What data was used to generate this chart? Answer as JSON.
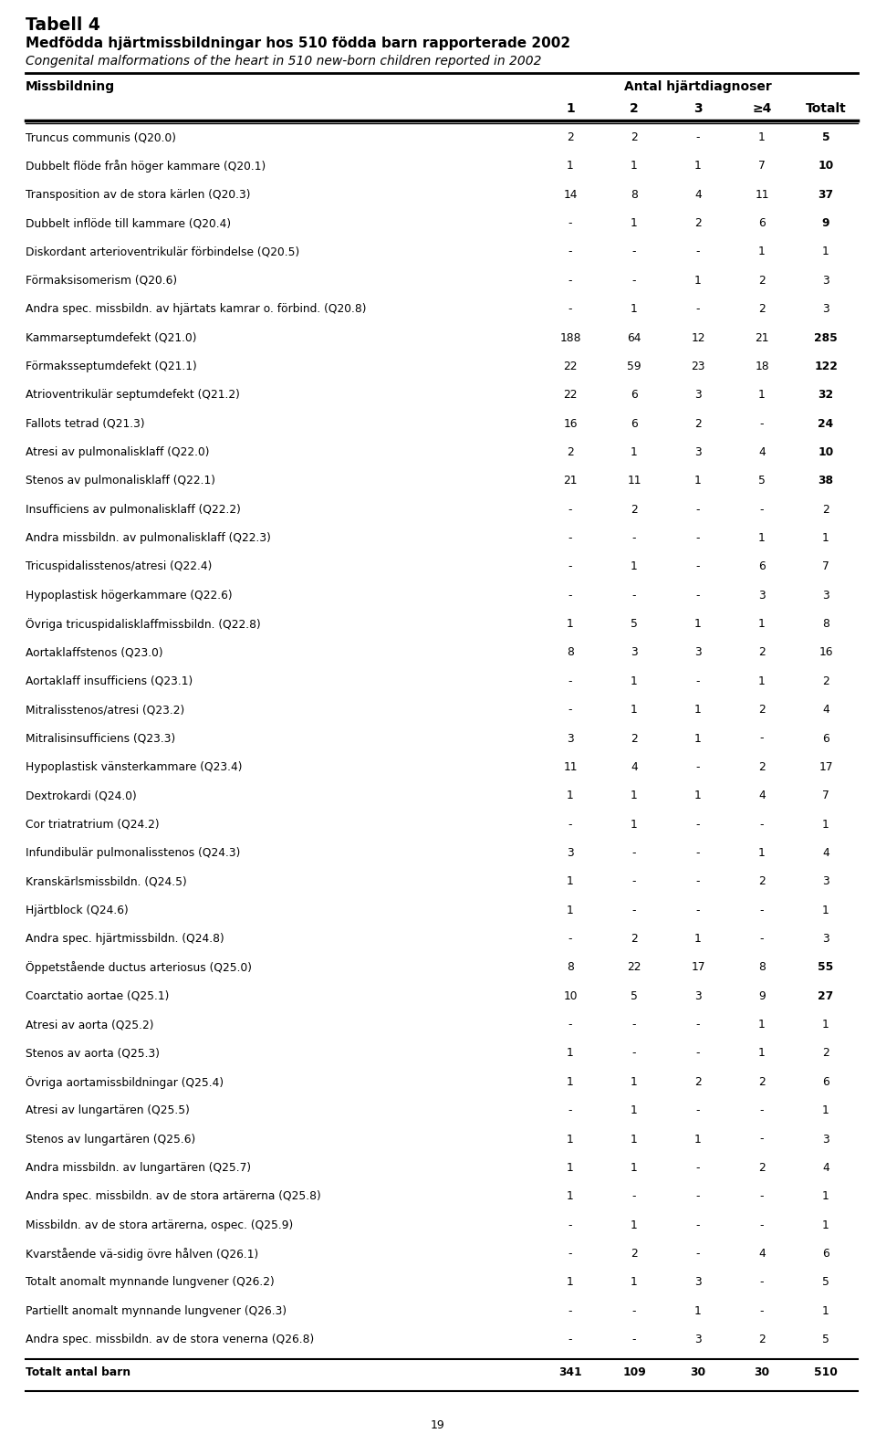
{
  "title1": "Tabell 4",
  "title2": "Medfödda hjärtmissbildningar hos 510 födda barn rapporterade 2002",
  "title3": "Congenital malformations of the heart in 510 new-born children reported in 2002",
  "col_header_left": "Missbildning",
  "col_header_right": "Antal hjärtdiagnoser",
  "col_subheaders": [
    "1",
    "2",
    "3",
    "≥4",
    "Totalt"
  ],
  "bold_total_rows": [
    0,
    1,
    2,
    3,
    7,
    8,
    9,
    10,
    11,
    12,
    29,
    30
  ],
  "rows": [
    [
      "Truncus communis (Q20.0)",
      "2",
      "2",
      "-",
      "1",
      "5"
    ],
    [
      "Dubbelt flöde från höger kammare (Q20.1)",
      "1",
      "1",
      "1",
      "7",
      "10"
    ],
    [
      "Transposition av de stora kärlen (Q20.3)",
      "14",
      "8",
      "4",
      "11",
      "37"
    ],
    [
      "Dubbelt inflöde till kammare (Q20.4)",
      "-",
      "1",
      "2",
      "6",
      "9"
    ],
    [
      "Diskordant arterioventrikulär förbindelse (Q20.5)",
      "-",
      "-",
      "-",
      "1",
      "1"
    ],
    [
      "Förmaksisomerism (Q20.6)",
      "-",
      "-",
      "1",
      "2",
      "3"
    ],
    [
      "Andra spec. missbildn. av hjärtats kamrar o. förbind. (Q20.8)",
      "-",
      "1",
      "-",
      "2",
      "3"
    ],
    [
      "Kammarseptumdefekt (Q21.0)",
      "188",
      "64",
      "12",
      "21",
      "285"
    ],
    [
      "Förmaksseptumdefekt (Q21.1)",
      "22",
      "59",
      "23",
      "18",
      "122"
    ],
    [
      "Atrioventrikulär septumdefekt (Q21.2)",
      "22",
      "6",
      "3",
      "1",
      "32"
    ],
    [
      "Fallots tetrad (Q21.3)",
      "16",
      "6",
      "2",
      "-",
      "24"
    ],
    [
      "Atresi av pulmonalisklaff (Q22.0)",
      "2",
      "1",
      "3",
      "4",
      "10"
    ],
    [
      "Stenos av pulmonalisklaff (Q22.1)",
      "21",
      "11",
      "1",
      "5",
      "38"
    ],
    [
      "Insufficiens av pulmonalisklaff (Q22.2)",
      "-",
      "2",
      "-",
      "-",
      "2"
    ],
    [
      "Andra missbildn. av pulmonalisklaff (Q22.3)",
      "-",
      "-",
      "-",
      "1",
      "1"
    ],
    [
      "Tricuspidalisstenos/atresi (Q22.4)",
      "-",
      "1",
      "-",
      "6",
      "7"
    ],
    [
      "Hypoplastisk högerkammare (Q22.6)",
      "-",
      "-",
      "-",
      "3",
      "3"
    ],
    [
      "Övriga tricuspidalisklaffmissbildn. (Q22.8)",
      "1",
      "5",
      "1",
      "1",
      "8"
    ],
    [
      "Aortaklaffstenos (Q23.0)",
      "8",
      "3",
      "3",
      "2",
      "16"
    ],
    [
      "Aortaklaff insufficiens (Q23.1)",
      "-",
      "1",
      "-",
      "1",
      "2"
    ],
    [
      "Mitralisstenos/atresi (Q23.2)",
      "-",
      "1",
      "1",
      "2",
      "4"
    ],
    [
      "Mitralisinsufficiens (Q23.3)",
      "3",
      "2",
      "1",
      "-",
      "6"
    ],
    [
      "Hypoplastisk vänsterkammare (Q23.4)",
      "11",
      "4",
      "-",
      "2",
      "17"
    ],
    [
      "Dextrokardi (Q24.0)",
      "1",
      "1",
      "1",
      "4",
      "7"
    ],
    [
      "Cor triatratrium (Q24.2)",
      "-",
      "1",
      "-",
      "-",
      "1"
    ],
    [
      "Infundibulär pulmonalisstenos (Q24.3)",
      "3",
      "-",
      "-",
      "1",
      "4"
    ],
    [
      "Kranskärlsmissbildn. (Q24.5)",
      "1",
      "-",
      "-",
      "2",
      "3"
    ],
    [
      "Hjärtblock (Q24.6)",
      "1",
      "-",
      "-",
      "-",
      "1"
    ],
    [
      "Andra spec. hjärtmissbildn. (Q24.8)",
      "-",
      "2",
      "1",
      "-",
      "3"
    ],
    [
      "Öppetstående ductus arteriosus (Q25.0)",
      "8",
      "22",
      "17",
      "8",
      "55"
    ],
    [
      "Coarctatio aortae (Q25.1)",
      "10",
      "5",
      "3",
      "9",
      "27"
    ],
    [
      "Atresi av aorta (Q25.2)",
      "-",
      "-",
      "-",
      "1",
      "1"
    ],
    [
      "Stenos av aorta (Q25.3)",
      "1",
      "-",
      "-",
      "1",
      "2"
    ],
    [
      "Övriga aortamissbildningar (Q25.4)",
      "1",
      "1",
      "2",
      "2",
      "6"
    ],
    [
      "Atresi av lungartären (Q25.5)",
      "-",
      "1",
      "-",
      "-",
      "1"
    ],
    [
      "Stenos av lungartären (Q25.6)",
      "1",
      "1",
      "1",
      "-",
      "3"
    ],
    [
      "Andra missbildn. av lungartären (Q25.7)",
      "1",
      "1",
      "-",
      "2",
      "4"
    ],
    [
      "Andra spec. missbildn. av de stora artärerna (Q25.8)",
      "1",
      "-",
      "-",
      "-",
      "1"
    ],
    [
      "Missbildn. av de stora artärerna, ospec. (Q25.9)",
      "-",
      "1",
      "-",
      "-",
      "1"
    ],
    [
      "Kvarstående vä-sidig övre hålven (Q26.1)",
      "-",
      "2",
      "-",
      "4",
      "6"
    ],
    [
      "Totalt anomalt mynnande lungvener (Q26.2)",
      "1",
      "1",
      "3",
      "-",
      "5"
    ],
    [
      "Partiellt anomalt mynnande lungvener (Q26.3)",
      "-",
      "-",
      "1",
      "-",
      "1"
    ],
    [
      "Andra spec. missbildn. av de stora venerna (Q26.8)",
      "-",
      "-",
      "3",
      "2",
      "5"
    ]
  ],
  "footer_row": [
    "Totalt antal barn",
    "341",
    "109",
    "30",
    "30",
    "510"
  ],
  "fig_width": 9.6,
  "fig_height": 15.82,
  "dpi": 100
}
